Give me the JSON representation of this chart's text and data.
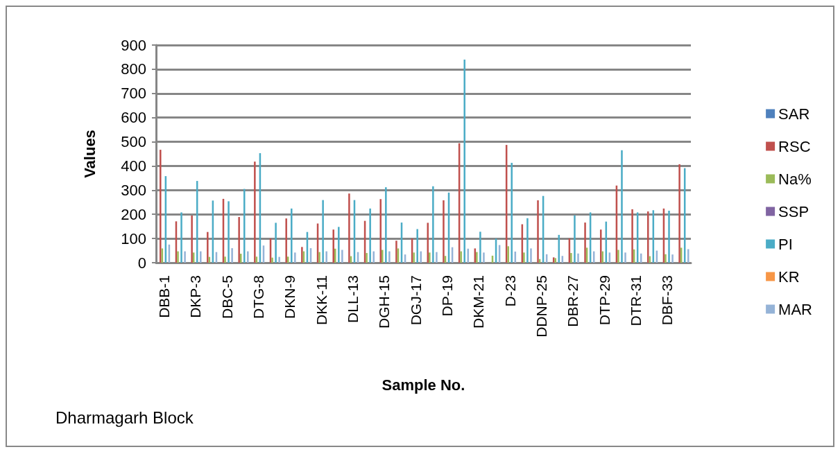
{
  "chart_data": {
    "type": "bar",
    "xlabel": "Sample No.",
    "ylabel": "Values",
    "annotations": [
      "Dharmagarh Block"
    ],
    "categories": [
      "DBB-1",
      null,
      "DKP-3",
      null,
      "DBC-5",
      null,
      "DTG-8",
      null,
      "DKN-9",
      null,
      "DKK-11",
      null,
      "DLL-13",
      null,
      "DGH-15",
      null,
      "DGJ-17",
      null,
      "DP-19",
      null,
      "DKM-21",
      null,
      "D-23",
      null,
      "DDNP-25",
      null,
      "DBR-27",
      null,
      "DTP-29",
      null,
      "DTR-31",
      null,
      "DBF-33",
      null
    ],
    "series": [
      {
        "name": "SAR",
        "color": "#4f81bd",
        "values": [
          null,
          null,
          null,
          null,
          null,
          null,
          null,
          null,
          null,
          null,
          null,
          null,
          null,
          null,
          null,
          null,
          null,
          null,
          null,
          null,
          null,
          null,
          null,
          null,
          null,
          null,
          null,
          null,
          null,
          null,
          null,
          null,
          null,
          null
        ]
      },
      {
        "name": "RSC",
        "color": "#c0504d",
        "values": [
          467,
          171,
          195,
          127,
          264,
          189,
          418,
          100,
          183,
          65,
          162,
          137,
          286,
          173,
          263,
          91,
          100,
          165,
          258,
          494,
          59,
          null,
          487,
          159,
          258,
          22,
          100,
          166,
          137,
          319,
          221,
          212,
          224,
          407
        ]
      },
      {
        "name": "Na%",
        "color": "#9bbb59",
        "values": [
          59,
          47,
          42,
          24,
          25,
          37,
          25,
          21,
          25,
          47,
          44,
          58,
          27,
          40,
          53,
          59,
          42,
          42,
          28,
          47,
          44,
          29,
          68,
          42,
          15,
          19,
          40,
          62,
          47,
          53,
          55,
          27,
          35,
          62
        ]
      },
      {
        "name": "SSP",
        "color": "#8064a2",
        "values": [
          null,
          null,
          null,
          null,
          null,
          null,
          null,
          null,
          null,
          null,
          null,
          null,
          null,
          null,
          null,
          null,
          null,
          null,
          null,
          null,
          null,
          null,
          null,
          null,
          null,
          null,
          null,
          null,
          null,
          null,
          null,
          null,
          null,
          null
        ]
      },
      {
        "name": "PI",
        "color": "#4bacc6",
        "values": [
          358,
          208,
          338,
          257,
          254,
          305,
          453,
          165,
          224,
          127,
          259,
          148,
          259,
          224,
          312,
          166,
          139,
          316,
          290,
          840,
          128,
          100,
          413,
          184,
          276,
          115,
          196,
          208,
          170,
          465,
          208,
          217,
          215,
          391
        ]
      },
      {
        "name": "KR",
        "color": "#f79646",
        "values": [
          null,
          null,
          null,
          null,
          null,
          null,
          null,
          null,
          null,
          null,
          null,
          null,
          null,
          null,
          null,
          null,
          null,
          null,
          null,
          null,
          null,
          null,
          null,
          null,
          null,
          null,
          null,
          null,
          null,
          null,
          null,
          null,
          null,
          null
        ]
      },
      {
        "name": "MAR",
        "color": "#95b3d7",
        "values": [
          75,
          47,
          47,
          44,
          60,
          47,
          71,
          24,
          42,
          60,
          47,
          53,
          44,
          47,
          47,
          34,
          47,
          44,
          64,
          58,
          42,
          73,
          46,
          59,
          35,
          28,
          38,
          47,
          42,
          42,
          38,
          50,
          34,
          56
        ]
      }
    ],
    "ylim": [
      0,
      900
    ],
    "yticks": [
      0,
      100,
      200,
      300,
      400,
      500,
      600,
      700,
      800,
      900
    ],
    "grid": "y",
    "legend": "right"
  }
}
